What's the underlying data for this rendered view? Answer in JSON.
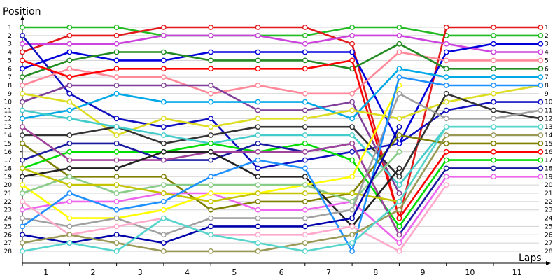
{
  "chart_data": {
    "type": "line",
    "title": "",
    "ylabel": "Position",
    "xlabel": "Laps",
    "x": [
      0,
      1,
      2,
      3,
      4,
      5,
      6,
      7,
      8,
      9,
      10,
      11,
      12
    ],
    "x_tick_labels": [
      "1",
      "2",
      "3",
      "4",
      "5",
      "6",
      "7",
      "8",
      "9",
      "10",
      "11"
    ],
    "y_tick_labels": [
      "1",
      "2",
      "3",
      "4",
      "5",
      "6",
      "7",
      "8",
      "9",
      "10",
      "11",
      "12",
      "13",
      "14",
      "15",
      "16",
      "17",
      "18",
      "19",
      "20",
      "21",
      "22",
      "23",
      "24",
      "25",
      "26",
      "27",
      "28"
    ],
    "right_tick_labels": [
      "1",
      "2",
      "3",
      "4",
      "5",
      "6",
      "7",
      "8",
      "9",
      "10",
      "11",
      "12",
      "13",
      "14",
      "15",
      "16",
      "17",
      "18",
      "19",
      "20",
      "21",
      "22",
      "23",
      "24",
      "25",
      "26",
      "27",
      "28"
    ],
    "ylim": [
      1,
      28
    ],
    "y_inverted": true,
    "grid": "horizontal",
    "legend": "none",
    "series": [
      {
        "color": "#22bb22",
        "values": [
          1,
          1,
          1,
          2,
          2,
          2,
          2,
          1,
          1,
          2,
          2,
          2,
          null
        ]
      },
      {
        "color": "#e31a1c",
        "values": [
          4,
          2,
          2,
          1,
          1,
          1,
          1,
          3,
          24,
          1,
          1,
          1,
          null
        ]
      },
      {
        "color": "#cc44dd",
        "values": [
          3,
          3,
          3,
          2,
          2,
          2,
          3,
          2,
          2,
          3,
          4,
          4,
          null
        ]
      },
      {
        "color": "#1010c0",
        "values": [
          2,
          9,
          12,
          13,
          12,
          18,
          17,
          16,
          15,
          11,
          10,
          10,
          null
        ]
      },
      {
        "color": "#0000dd",
        "values": [
          6,
          4,
          5,
          5,
          4,
          4,
          4,
          4,
          15,
          4,
          3,
          3,
          null
        ]
      },
      {
        "color": "#ff8899",
        "values": [
          8,
          6,
          7,
          7,
          9,
          8,
          9,
          9,
          4,
          5,
          5,
          5,
          null
        ]
      },
      {
        "color": "#228b22",
        "values": [
          7,
          5,
          4,
          4,
          5,
          5,
          5,
          6,
          3,
          6,
          6,
          6,
          null
        ]
      },
      {
        "color": "#ff0000",
        "values": [
          5,
          7,
          6,
          6,
          6,
          6,
          6,
          5,
          24,
          16,
          16,
          16,
          null
        ]
      },
      {
        "color": "#7f3f98",
        "values": [
          10,
          8,
          8,
          8,
          8,
          11,
          11,
          10,
          21,
          null,
          null,
          null,
          null
        ]
      },
      {
        "color": "#00a8e8",
        "values": [
          12,
          11,
          9,
          10,
          10,
          10,
          10,
          12,
          6,
          7,
          7,
          7,
          null
        ]
      },
      {
        "color": "#dddd22",
        "values": [
          9,
          10,
          14,
          12,
          13,
          12,
          12,
          11,
          12,
          10,
          9,
          8,
          null
        ]
      },
      {
        "color": "#333333",
        "values": [
          14,
          14,
          13,
          15,
          14,
          13,
          13,
          13,
          19,
          9,
          11,
          12,
          null
        ]
      },
      {
        "color": "#44cccc",
        "values": [
          11,
          12,
          13,
          14,
          15,
          14,
          14,
          14,
          20,
          13,
          13,
          13,
          null
        ]
      },
      {
        "color": "#808000",
        "values": [
          15,
          19,
          19,
          19,
          23,
          22,
          22,
          21,
          14,
          15,
          15,
          15,
          null
        ]
      },
      {
        "color": "#00dd00",
        "values": [
          18,
          16,
          16,
          16,
          15,
          16,
          15,
          17,
          25,
          17,
          17,
          17,
          null
        ]
      },
      {
        "color": "#1a1aa0",
        "values": [
          17,
          15,
          15,
          17,
          17,
          15,
          16,
          15,
          26,
          18,
          18,
          18,
          null
        ]
      },
      {
        "color": "#a0449a",
        "values": [
          13,
          17,
          17,
          17,
          16,
          16,
          16,
          15,
          26,
          null,
          null,
          null,
          null
        ]
      },
      {
        "color": "#222222",
        "values": [
          19,
          18,
          18,
          16,
          16,
          19,
          19,
          25,
          18,
          null,
          null,
          null,
          null
        ]
      },
      {
        "color": "#ee66ee",
        "values": [
          23,
          22,
          22,
          21,
          21,
          23,
          23,
          22,
          27,
          19,
          19,
          19,
          null
        ]
      },
      {
        "color": "#ffff00",
        "values": [
          20,
          24,
          24,
          23,
          21,
          21,
          20,
          19,
          8,
          null,
          null,
          null,
          null
        ]
      },
      {
        "color": "#88cc88",
        "values": [
          21,
          19,
          21,
          20,
          20,
          20,
          20,
          22,
          16,
          null,
          null,
          null,
          null
        ]
      },
      {
        "color": "#c4c400",
        "values": [
          18,
          20,
          20,
          21,
          22,
          21,
          21,
          21,
          22,
          null,
          null,
          null,
          null
        ]
      },
      {
        "color": "#a0a0a0",
        "values": [
          24,
          25,
          24,
          26,
          24,
          24,
          24,
          23,
          9,
          12,
          12,
          11,
          null
        ]
      },
      {
        "color": "#1e90ff",
        "values": [
          25,
          21,
          23,
          22,
          19,
          17,
          18,
          28,
          7,
          8,
          8,
          8,
          null
        ]
      },
      {
        "color": "#0000aa",
        "values": [
          26,
          27,
          26,
          27,
          25,
          25,
          25,
          24,
          13,
          null,
          null,
          null,
          null
        ]
      },
      {
        "color": "#ffaacc",
        "values": [
          22,
          26,
          25,
          24,
          26,
          26,
          26,
          25,
          28,
          20,
          null,
          null,
          null
        ]
      },
      {
        "color": "#999955",
        "values": [
          27,
          26,
          27,
          28,
          28,
          28,
          27,
          26,
          23,
          14,
          14,
          14,
          null
        ]
      },
      {
        "color": "#55d5cc",
        "values": [
          28,
          27,
          28,
          24,
          26,
          27,
          28,
          27,
          22,
          13,
          13,
          13,
          null
        ]
      }
    ]
  }
}
